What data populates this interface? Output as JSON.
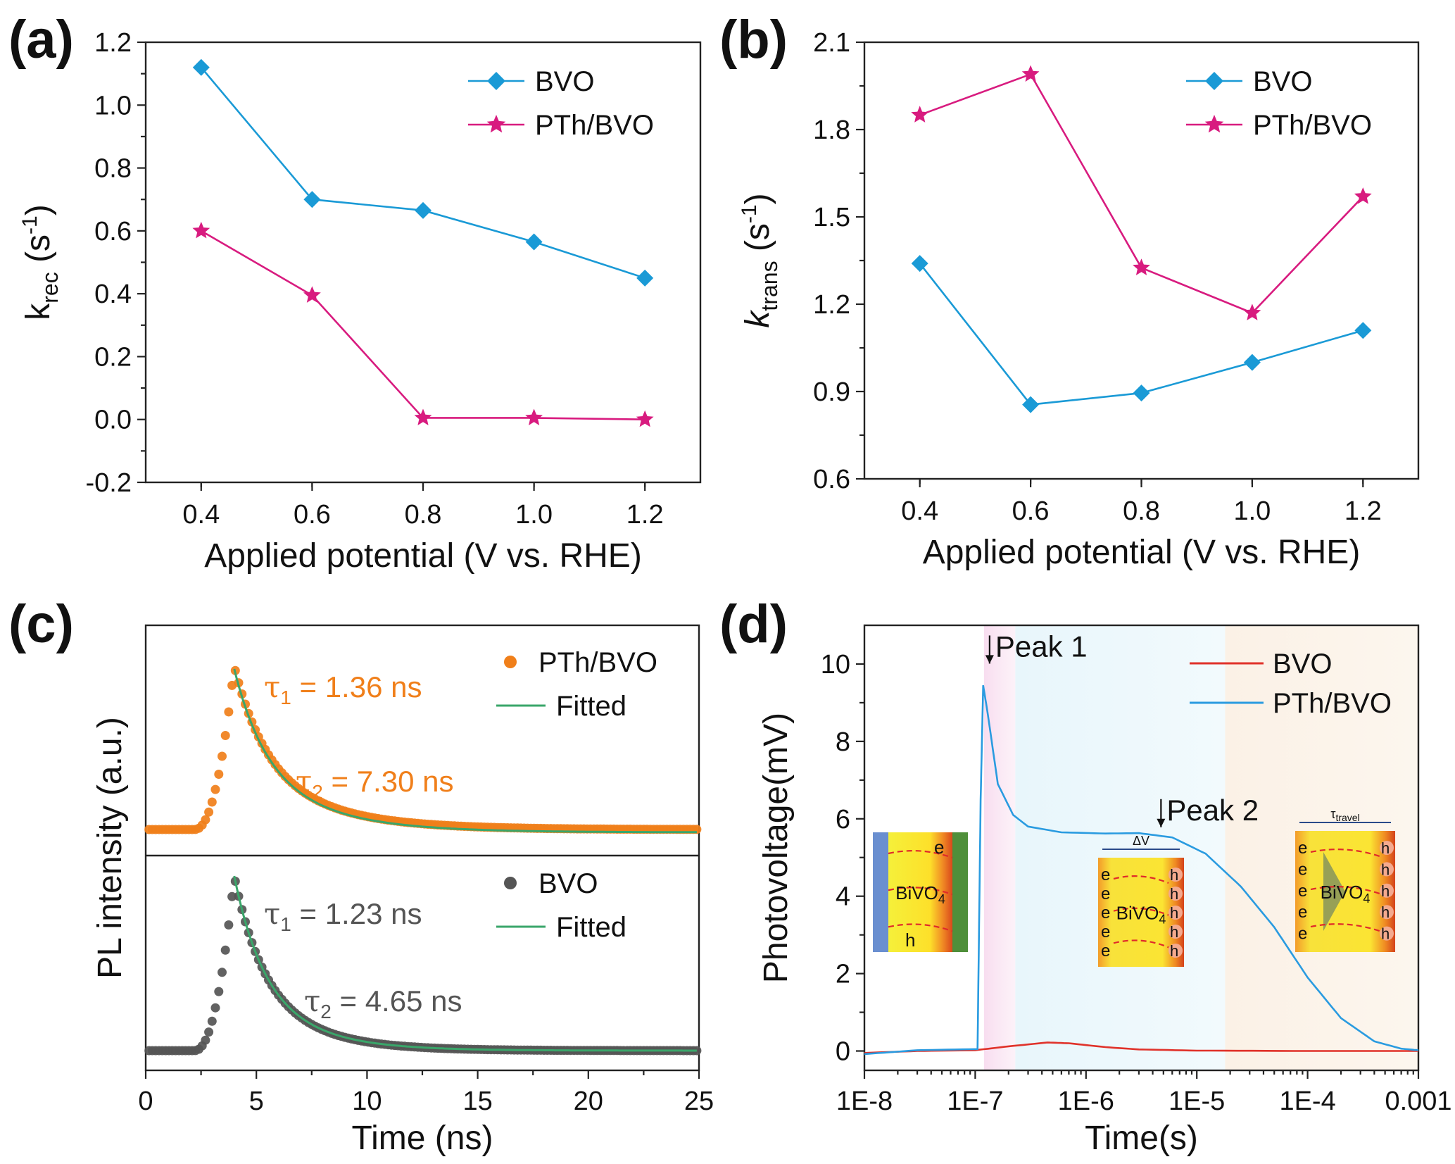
{
  "colors": {
    "bvo": "#1a9ad6",
    "pth_bvo": "#d81b7f",
    "orange": "#f07f1a",
    "gray_scatter": "#555555",
    "fit_green": "#3aa66a",
    "bvo_red": "#e0322a",
    "pth_blue": "#2a9be0"
  },
  "chart_data": [
    {
      "panel": "(a)",
      "type": "line",
      "xlabel": "Applied potential (V vs. RHE)",
      "ylabel_main": "k",
      "ylabel_sub": "rec",
      "ylabel_unit": " (s",
      "ylabel_sup": "-1",
      "ylabel_close": ")",
      "x": [
        0.4,
        0.6,
        0.8,
        1.0,
        1.2
      ],
      "xlim": [
        0.3,
        1.3
      ],
      "ylim": [
        -0.2,
        1.2
      ],
      "xticks": [
        "0.4",
        "0.6",
        "0.8",
        "1.0",
        "1.2"
      ],
      "yticks": [
        "-0.2",
        "0.0",
        "0.2",
        "0.4",
        "0.6",
        "0.8",
        "1.0",
        "1.2"
      ],
      "legend_position": "top-right",
      "series": [
        {
          "name": "BVO",
          "marker": "diamond",
          "values": [
            1.12,
            0.7,
            0.665,
            0.565,
            0.45
          ]
        },
        {
          "name": "PTh/BVO",
          "marker": "star",
          "values": [
            0.6,
            0.395,
            0.005,
            0.005,
            0.0
          ]
        }
      ]
    },
    {
      "panel": "(b)",
      "type": "line",
      "xlabel": "Applied potential (V vs. RHE)",
      "ylabel_main": "k",
      "ylabel_sub": "trans",
      "ylabel_unit": " (s",
      "ylabel_sup": "-1",
      "ylabel_close": ")",
      "x": [
        0.4,
        0.6,
        0.8,
        1.0,
        1.2
      ],
      "xlim": [
        0.3,
        1.3
      ],
      "ylim": [
        0.6,
        2.1
      ],
      "xticks": [
        "0.4",
        "0.6",
        "0.8",
        "1.0",
        "1.2"
      ],
      "yticks": [
        "0.6",
        "0.9",
        "1.2",
        "1.5",
        "1.8",
        "2.1"
      ],
      "legend_position": "top-right",
      "series": [
        {
          "name": "BVO",
          "marker": "diamond",
          "values": [
            1.34,
            0.855,
            0.895,
            1.0,
            1.11
          ]
        },
        {
          "name": "PTh/BVO",
          "marker": "star",
          "values": [
            1.85,
            1.99,
            1.325,
            1.17,
            1.57
          ]
        }
      ]
    },
    {
      "panel": "(c)",
      "type": "scatter",
      "xlabel": "Time (ns)",
      "ylabel": "PL intensity (a.u.)",
      "xlim": [
        0,
        25
      ],
      "xticks": [
        "0",
        "5",
        "10",
        "15",
        "20",
        "25"
      ],
      "subplots": [
        {
          "series_name": "PTh/BVO",
          "fit_name": "Fitted",
          "tau1": "1.36 ns",
          "tau2": "7.30 ns",
          "rise_start": 2.2,
          "peak_time": 4.0,
          "tau1_value": 1.36,
          "tau2_value": 7.3
        },
        {
          "series_name": "BVO",
          "fit_name": "Fitted",
          "tau1": "1.23 ns",
          "tau2": "4.65 ns",
          "rise_start": 2.2,
          "peak_time": 4.0,
          "tau1_value": 1.23,
          "tau2_value": 4.65
        }
      ]
    },
    {
      "panel": "(d)",
      "type": "line",
      "xlabel": "Time(s)",
      "ylabel": "Photovoltage(mV)",
      "x_scale": "log",
      "xlim": [
        1e-08,
        0.001
      ],
      "ylim": [
        -0.5,
        11
      ],
      "xticks": [
        "1E-8",
        "1E-7",
        "1E-6",
        "1E-5",
        "1E-4",
        "0.001"
      ],
      "yticks": [
        "0",
        "2",
        "4",
        "6",
        "8",
        "10"
      ],
      "legend_position": "top-right",
      "annotations": [
        {
          "text": "Peak 1",
          "x": 1.2e-07,
          "y": 9.5
        },
        {
          "text": "Peak 2",
          "x": 5.5e-06,
          "y": 5.6
        }
      ],
      "insets": [
        {
          "top_label": "",
          "material": "BiVO",
          "sub": "4",
          "carriers_left": "e",
          "carriers_right": "h"
        },
        {
          "top_label": "ΔV",
          "material": "BiVO",
          "sub": "4",
          "carriers_left": "e",
          "carriers_right": "h"
        },
        {
          "top_label": "τ",
          "top_sub": "travel",
          "material": "BiVO",
          "sub": "4",
          "carriers_left": "e",
          "carriers_right": "h"
        }
      ],
      "series": [
        {
          "name": "BVO",
          "points": [
            [
              1e-08,
              -0.05
            ],
            [
              3e-08,
              0.0
            ],
            [
              1e-07,
              0.02
            ],
            [
              2e-07,
              0.12
            ],
            [
              4.5e-07,
              0.22
            ],
            [
              7e-07,
              0.2
            ],
            [
              1.5e-06,
              0.1
            ],
            [
              3e-06,
              0.04
            ],
            [
              1e-05,
              0.01
            ],
            [
              0.0001,
              0.0
            ],
            [
              0.001,
              0.0
            ]
          ]
        },
        {
          "name": "PTh/BVO",
          "points": [
            [
              1e-08,
              -0.08
            ],
            [
              3e-08,
              0.02
            ],
            [
              1.05e-07,
              0.05
            ],
            [
              1.12e-07,
              6.5
            ],
            [
              1.18e-07,
              9.45
            ],
            [
              1.3e-07,
              8.7
            ],
            [
              1.6e-07,
              6.9
            ],
            [
              2.2e-07,
              6.1
            ],
            [
              3e-07,
              5.8
            ],
            [
              6e-07,
              5.65
            ],
            [
              1.5e-06,
              5.62
            ],
            [
              3e-06,
              5.63
            ],
            [
              6e-06,
              5.52
            ],
            [
              1.2e-05,
              5.1
            ],
            [
              2.5e-05,
              4.25
            ],
            [
              5e-05,
              3.2
            ],
            [
              0.0001,
              1.9
            ],
            [
              0.0002,
              0.85
            ],
            [
              0.0004,
              0.25
            ],
            [
              0.0007,
              0.06
            ],
            [
              0.001,
              0.02
            ]
          ]
        }
      ]
    }
  ]
}
